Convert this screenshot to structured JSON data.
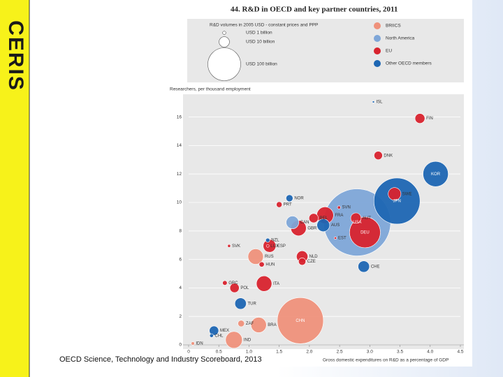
{
  "logo": "CERIS",
  "footer": "OECD Science, Technology and Industry Scoreboard, 2013",
  "chart_data": {
    "type": "scatter",
    "title": "44. R&D in OECD and key partner countries, 2011",
    "y_label": "Researchers, per thousand employment",
    "x_label": "Gross domestic expenditures on R&D as a percentage of GDP",
    "size_legend": {
      "title": "R&D volumes in 2005 USD - constant prices and PPP",
      "entries": [
        {
          "label": "USD 1 billion",
          "size": 1
        },
        {
          "label": "USD 10 billion",
          "size": 10
        },
        {
          "label": "USD 100 billion",
          "size": 100
        }
      ]
    },
    "xlim": [
      0,
      4.5
    ],
    "xticks": [
      0,
      0.5,
      {
        "value": 1,
        "label": "1.0"
      },
      1.5,
      {
        "value": 2,
        "label": "2.0"
      },
      2.5,
      {
        "value": 3,
        "label": "3.0"
      },
      3.5,
      {
        "value": 4,
        "label": "4.0"
      },
      4.5
    ],
    "ylim": [
      0,
      17.5
    ],
    "yticks": [
      0,
      2,
      4,
      6,
      8,
      10,
      12,
      14,
      16
    ],
    "series": [
      {
        "name": "BRIICS",
        "color": "#ef917b",
        "labels": [
          "RUS",
          "ZAF",
          "BRA",
          "CHN",
          "IND",
          "IDN"
        ],
        "x": [
          1.11,
          0.87,
          1.16,
          1.85,
          0.75,
          0.07
        ],
        "values": [
          6.2,
          1.5,
          1.4,
          1.7,
          0.35,
          0.1
        ],
        "sizes": [
          22,
          4,
          22,
          197,
          26,
          1
        ]
      },
      {
        "name": "North America",
        "color": "#7ea6d8",
        "labels": [
          "USA",
          "CAN"
        ],
        "x": [
          2.79,
          1.72
        ],
        "values": [
          8.6,
          8.6
        ],
        "sizes": [
          417,
          15
        ]
      },
      {
        "name": "EU",
        "color": "#d8232e",
        "labels": [
          "FIN",
          "DNK",
          "PRT",
          "SVN",
          "SWE",
          "BEL",
          "FRA",
          "AUT",
          "DEU",
          "GBR",
          "EST",
          "SVK",
          "LUX",
          "ESP",
          "NLD",
          "HUN",
          "CZE",
          "GRC",
          "ITA",
          "POL"
        ],
        "x": [
          3.83,
          3.14,
          1.5,
          2.49,
          3.41,
          2.07,
          2.26,
          2.77,
          2.92,
          1.82,
          2.43,
          0.67,
          1.31,
          1.34,
          1.88,
          1.21,
          1.88,
          0.6,
          1.25,
          0.76
        ],
        "values": [
          15.9,
          13.3,
          9.85,
          9.65,
          10.6,
          8.9,
          9.1,
          8.9,
          7.9,
          8.2,
          7.5,
          6.95,
          6.95,
          6.95,
          6.2,
          5.65,
          5.85,
          4.35,
          4.3,
          4.0
        ],
        "sizes": [
          9,
          6.5,
          3,
          0.9,
          15,
          8,
          26,
          10,
          88,
          22,
          0.5,
          0.8,
          0.7,
          15,
          12,
          2.5,
          5,
          2,
          22,
          8
        ]
      },
      {
        "name": "Other OECD members",
        "color": "#1d66b3",
        "labels": [
          "ISL",
          "KOR",
          "NOR",
          "JPN",
          "AUS",
          "NZL",
          "CHE",
          "TUR",
          "MEX",
          "CHL"
        ],
        "x": [
          3.06,
          4.09,
          1.67,
          3.45,
          2.23,
          1.31,
          2.9,
          0.86,
          0.42,
          0.38
        ],
        "values": [
          17.06,
          12.0,
          10.3,
          10.1,
          8.4,
          7.35,
          5.5,
          2.9,
          1.0,
          0.65
        ],
        "sizes": [
          0.3,
          59,
          4.5,
          197,
          15,
          1.6,
          12,
          12,
          8,
          1.3
        ]
      }
    ]
  }
}
